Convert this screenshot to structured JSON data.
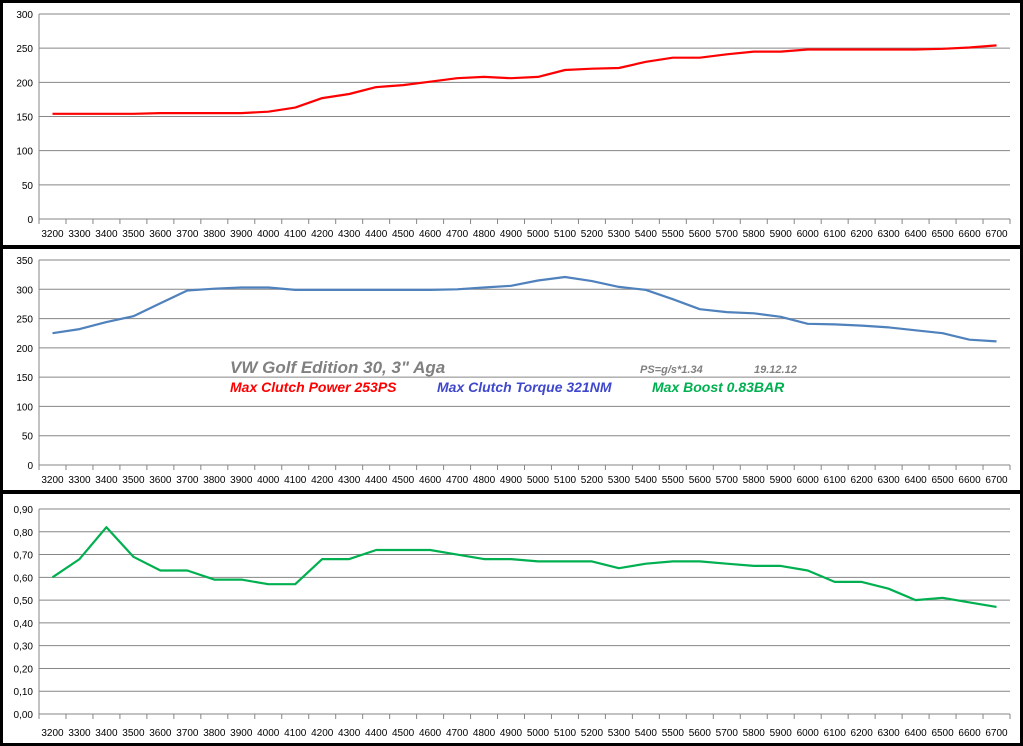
{
  "chart_data": [
    {
      "type": "line",
      "categories": [
        "3200",
        "3300",
        "3400",
        "3500",
        "3600",
        "3700",
        "3800",
        "3900",
        "4000",
        "4100",
        "4200",
        "4300",
        "4400",
        "4500",
        "4600",
        "4700",
        "4800",
        "4900",
        "5000",
        "5100",
        "5200",
        "5300",
        "5400",
        "5500",
        "5600",
        "5700",
        "5800",
        "5900",
        "6000",
        "6100",
        "6200",
        "6300",
        "6400",
        "6500",
        "6600",
        "6700"
      ],
      "series": [
        {
          "values": [
            154,
            154,
            154,
            154,
            155,
            155,
            155,
            155,
            157,
            163,
            177,
            183,
            193,
            196,
            201,
            206,
            208,
            206,
            208,
            218,
            220,
            221,
            230,
            236,
            236,
            241,
            245,
            245,
            248,
            248,
            248,
            248,
            248,
            249,
            251,
            254
          ],
          "color": "#ff0000"
        }
      ],
      "ylim": [
        0,
        300
      ],
      "yticks": [
        "0",
        "50",
        "100",
        "150",
        "200",
        "250",
        "300"
      ],
      "grid": true
    },
    {
      "type": "line",
      "categories": [
        "3200",
        "3300",
        "3400",
        "3500",
        "3600",
        "3700",
        "3800",
        "3900",
        "4000",
        "4100",
        "4200",
        "4300",
        "4400",
        "4500",
        "4600",
        "4700",
        "4800",
        "4900",
        "5000",
        "5100",
        "5200",
        "5300",
        "5400",
        "5500",
        "5600",
        "5700",
        "5800",
        "5900",
        "6000",
        "6100",
        "6200",
        "6300",
        "6400",
        "6500",
        "6600",
        "6700"
      ],
      "series": [
        {
          "values": [
            225,
            232,
            244,
            254,
            276,
            298,
            301,
            303,
            303,
            299,
            299,
            299,
            299,
            299,
            299,
            300,
            303,
            306,
            315,
            321,
            314,
            304,
            299,
            283,
            266,
            261,
            259,
            253,
            241,
            240,
            238,
            235,
            230,
            225,
            214,
            211
          ],
          "color": "#4f81bd"
        }
      ],
      "ylim": [
        0,
        350
      ],
      "yticks": [
        "0",
        "50",
        "100",
        "150",
        "200",
        "250",
        "300",
        "350"
      ],
      "grid": true,
      "annotations": {
        "title": {
          "text": "VW Golf Edition 30, 3\" Aga",
          "color": "#808080"
        },
        "formula": {
          "text": "PS=g/s*1.34",
          "color": "#808080"
        },
        "date": {
          "text": "19.12.12",
          "color": "#808080"
        },
        "power": {
          "text": "Max Clutch Power 253PS",
          "color": "#ff0000"
        },
        "torque": {
          "text": "Max Clutch Torque 321NM",
          "color": "#3f48cc"
        },
        "boost": {
          "text": "Max Boost 0.83BAR",
          "color": "#00b050"
        }
      }
    },
    {
      "type": "line",
      "categories": [
        "3200",
        "3300",
        "3400",
        "3500",
        "3600",
        "3700",
        "3800",
        "3900",
        "4000",
        "4100",
        "4200",
        "4300",
        "4400",
        "4500",
        "4600",
        "4700",
        "4800",
        "4900",
        "5000",
        "5100",
        "5200",
        "5300",
        "5400",
        "5500",
        "5600",
        "5700",
        "5800",
        "5900",
        "6000",
        "6100",
        "6200",
        "6300",
        "6400",
        "6500",
        "6600",
        "6700"
      ],
      "series": [
        {
          "values": [
            0.6,
            0.68,
            0.82,
            0.69,
            0.63,
            0.63,
            0.59,
            0.59,
            0.57,
            0.57,
            0.68,
            0.68,
            0.72,
            0.72,
            0.72,
            0.7,
            0.68,
            0.68,
            0.67,
            0.67,
            0.67,
            0.64,
            0.66,
            0.67,
            0.67,
            0.66,
            0.65,
            0.65,
            0.63,
            0.58,
            0.58,
            0.55,
            0.5,
            0.51,
            0.49,
            0.47
          ],
          "color": "#00b050"
        }
      ],
      "ylim": [
        0,
        0.9
      ],
      "yticks": [
        "0,00",
        "0,10",
        "0,20",
        "0,30",
        "0,40",
        "0,50",
        "0,60",
        "0,70",
        "0,80",
        "0,90"
      ],
      "grid": true
    }
  ]
}
